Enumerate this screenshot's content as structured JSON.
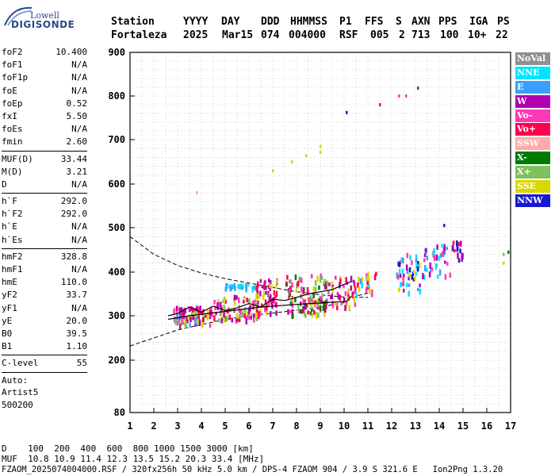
{
  "header": {
    "line1": [
      "Station",
      "YYYY",
      "DAY",
      "DDD",
      "HHMMSS",
      "P1",
      "FFS",
      "S",
      "AXN",
      "PPS",
      "IGA",
      "PS"
    ],
    "line2": [
      "Fortaleza",
      "2025",
      "Mar15",
      "074",
      "004000",
      "RSF",
      "005",
      "2",
      "713",
      "100",
      "10+",
      "22"
    ]
  },
  "logo": {
    "top": "Lowell",
    "bottom": "DIGISONDE"
  },
  "params_group1": [
    {
      "name": "foF2",
      "value": "10.400"
    },
    {
      "name": "foF1",
      "value": "N/A"
    },
    {
      "name": "foF1p",
      "value": "N/A"
    },
    {
      "name": "foE",
      "value": "N/A"
    },
    {
      "name": "foEp",
      "value": "0.52"
    },
    {
      "name": "fxI",
      "value": "5.50"
    },
    {
      "name": "foEs",
      "value": "N/A"
    },
    {
      "name": "fmin",
      "value": "2.60"
    }
  ],
  "params_group2": [
    {
      "name": "MUF(D)",
      "value": "33.44"
    },
    {
      "name": "M(D)",
      "value": "3.21"
    },
    {
      "name": "D",
      "value": "N/A"
    }
  ],
  "params_group3": [
    {
      "name": "h`F",
      "value": "292.0"
    },
    {
      "name": "h`F2",
      "value": "292.0"
    },
    {
      "name": "h`E",
      "value": "N/A"
    },
    {
      "name": "h`Es",
      "value": "N/A"
    }
  ],
  "params_group4": [
    {
      "name": "hmF2",
      "value": "328.8"
    },
    {
      "name": "hmF1",
      "value": "N/A"
    },
    {
      "name": "hmE",
      "value": "110.0"
    },
    {
      "name": "yF2",
      "value": "33.7"
    },
    {
      "name": "yF1",
      "value": "N/A"
    },
    {
      "name": "yE",
      "value": "20.0"
    },
    {
      "name": "B0",
      "value": "39.5"
    },
    {
      "name": "B1",
      "value": "1.10"
    }
  ],
  "params_group5": [
    {
      "name": "C-level",
      "value": "55"
    }
  ],
  "autoscale": [
    "Auto:",
    "Artist5",
    "500200"
  ],
  "footer": {
    "d_line": "D    100  200  400  600  800 1000 1500 3000 [km]",
    "muf_line": "MUF  10.8 10.9 11.4 12.3 13.5 15.2 20.3 33.4 [MHz]",
    "info_line": "FZAOM_2025074004000.RSF / 320fx256h 50 kHz 5.0 km / DPS-4 FZAOM 904 / 3.9 S 321.6 E   Ion2Png 1.3.20"
  },
  "legend": [
    {
      "label": "NoVal",
      "color": "#909090"
    },
    {
      "label": "NNE",
      "color": "#00e5ff"
    },
    {
      "label": "E",
      "color": "#3aa0ff"
    },
    {
      "label": "W",
      "color": "#b000b0"
    },
    {
      "label": "Vo-",
      "color": "#ff3ab4"
    },
    {
      "label": "Vo+",
      "color": "#ff0050"
    },
    {
      "label": "SSW",
      "color": "#ffaaaa"
    },
    {
      "label": "X-",
      "color": "#007a00"
    },
    {
      "label": "X+",
      "color": "#80c060"
    },
    {
      "label": "SSE",
      "color": "#d8d800"
    },
    {
      "label": "NNW",
      "color": "#1818d0"
    }
  ],
  "chart_data": {
    "type": "scatter",
    "xlabel": "",
    "ylabel": "",
    "xlim": [
      1,
      17
    ],
    "ylim": [
      80,
      900
    ],
    "x_ticks": [
      1,
      2,
      3,
      4,
      5,
      6,
      7,
      8,
      9,
      10,
      11,
      12,
      13,
      14,
      15,
      16,
      17
    ],
    "y_ticks": [
      80,
      200,
      300,
      400,
      500,
      600,
      700,
      800,
      900
    ],
    "grid": true,
    "legend_position": "right",
    "profile_curve": [
      [
        2.6,
        292
      ],
      [
        3.5,
        300
      ],
      [
        5,
        310
      ],
      [
        6.5,
        320
      ],
      [
        8,
        326
      ],
      [
        9.2,
        330
      ],
      [
        10.1,
        333
      ],
      [
        10.3,
        345
      ]
    ],
    "trace_curve": [
      [
        2.6,
        300
      ],
      [
        3,
        305
      ],
      [
        3.5,
        320
      ],
      [
        4,
        308
      ],
      [
        4.5,
        322
      ],
      [
        5,
        312
      ],
      [
        5.5,
        318
      ],
      [
        6,
        328
      ],
      [
        6.5,
        320
      ],
      [
        7,
        338
      ],
      [
        7.5,
        335
      ],
      [
        8,
        342
      ],
      [
        8.5,
        350
      ],
      [
        9,
        355
      ],
      [
        9.5,
        360
      ],
      [
        10,
        372
      ],
      [
        10.3,
        378
      ]
    ],
    "upper_bound_curve": [
      [
        1,
        480
      ],
      [
        2,
        440
      ],
      [
        3,
        415
      ],
      [
        4,
        398
      ],
      [
        5,
        385
      ],
      [
        6,
        375
      ],
      [
        7,
        365
      ],
      [
        8,
        355
      ],
      [
        9,
        348
      ],
      [
        10,
        343
      ],
      [
        11,
        342
      ]
    ],
    "lower_bound_curve": [
      [
        1,
        232
      ],
      [
        2,
        250
      ],
      [
        3,
        268
      ],
      [
        4,
        280
      ],
      [
        5,
        292
      ],
      [
        6,
        300
      ],
      [
        7,
        306
      ],
      [
        8,
        313
      ],
      [
        9,
        320
      ],
      [
        10,
        330
      ],
      [
        10.5,
        345
      ],
      [
        11,
        352
      ]
    ],
    "clusters": [
      {
        "x": [
          2.8,
          4.4
        ],
        "y": [
          278,
          320
        ],
        "colors": [
          "#d8d800",
          "#ff0050",
          "#ff3ab4",
          "#80c060",
          "#b000b0",
          "#3aa0ff"
        ],
        "n": 90
      },
      {
        "x": [
          4.4,
          6.4
        ],
        "y": [
          290,
          345
        ],
        "colors": [
          "#d8d800",
          "#ff0050",
          "#ff3ab4",
          "#80c060",
          "#b000b0"
        ],
        "n": 90
      },
      {
        "x": [
          5.0,
          6.3
        ],
        "y": [
          362,
          372
        ],
        "colors": [
          "#3aa0ff",
          "#00e5ff"
        ],
        "n": 30
      },
      {
        "x": [
          6.3,
          7.2
        ],
        "y": [
          300,
          385
        ],
        "colors": [
          "#ff0050",
          "#ff3ab4",
          "#b000b0",
          "#d8d800"
        ],
        "n": 60
      },
      {
        "x": [
          7.5,
          9.3
        ],
        "y": [
          300,
          395
        ],
        "colors": [
          "#ff0050",
          "#ff3ab4",
          "#b000b0",
          "#d8d800",
          "#80c060",
          "#007a00"
        ],
        "n": 120
      },
      {
        "x": [
          9.3,
          10.5
        ],
        "y": [
          320,
          390
        ],
        "colors": [
          "#ff0050",
          "#ff3ab4",
          "#b000b0",
          "#d8d800"
        ],
        "n": 45
      },
      {
        "x": [
          10.5,
          11.4
        ],
        "y": [
          345,
          400
        ],
        "colors": [
          "#ff0050",
          "#ff3ab4",
          "#00e5ff",
          "#3aa0ff",
          "#d8d800"
        ],
        "n": 25
      },
      {
        "x": [
          12.2,
          13.2
        ],
        "y": [
          350,
          440
        ],
        "colors": [
          "#00e5ff",
          "#3aa0ff",
          "#1818d0",
          "#b000b0",
          "#d8d800",
          "#ff3ab4"
        ],
        "n": 45
      },
      {
        "x": [
          13.3,
          14.5
        ],
        "y": [
          390,
          460
        ],
        "colors": [
          "#00e5ff",
          "#3aa0ff",
          "#b000b0",
          "#ff3ab4"
        ],
        "n": 40
      },
      {
        "x": [
          14.5,
          15.0
        ],
        "y": [
          425,
          470
        ],
        "colors": [
          "#b000b0",
          "#ff0050",
          "#1818d0"
        ],
        "n": 15
      }
    ],
    "sparse_points": [
      {
        "x": 10.1,
        "y": 762,
        "color": "#1818d0"
      },
      {
        "x": 11.5,
        "y": 780,
        "color": "#ff0050"
      },
      {
        "x": 12.3,
        "y": 800,
        "color": "#ff3ab4"
      },
      {
        "x": 12.6,
        "y": 800,
        "color": "#ff3ab4"
      },
      {
        "x": 13.1,
        "y": 818,
        "color": "#007a00"
      },
      {
        "x": 9.0,
        "y": 685,
        "color": "#d8d800"
      },
      {
        "x": 9.0,
        "y": 672,
        "color": "#d8d800"
      },
      {
        "x": 8.4,
        "y": 664,
        "color": "#d8d800"
      },
      {
        "x": 7.8,
        "y": 650,
        "color": "#d8d800"
      },
      {
        "x": 7.0,
        "y": 630,
        "color": "#d8d800"
      },
      {
        "x": 3.8,
        "y": 580,
        "color": "#ffaaaa"
      },
      {
        "x": 14.2,
        "y": 505,
        "color": "#1818d0"
      },
      {
        "x": 16.7,
        "y": 440,
        "color": "#80c060"
      },
      {
        "x": 16.7,
        "y": 420,
        "color": "#d8d800"
      },
      {
        "x": 16.9,
        "y": 445,
        "color": "#007a00"
      }
    ]
  }
}
